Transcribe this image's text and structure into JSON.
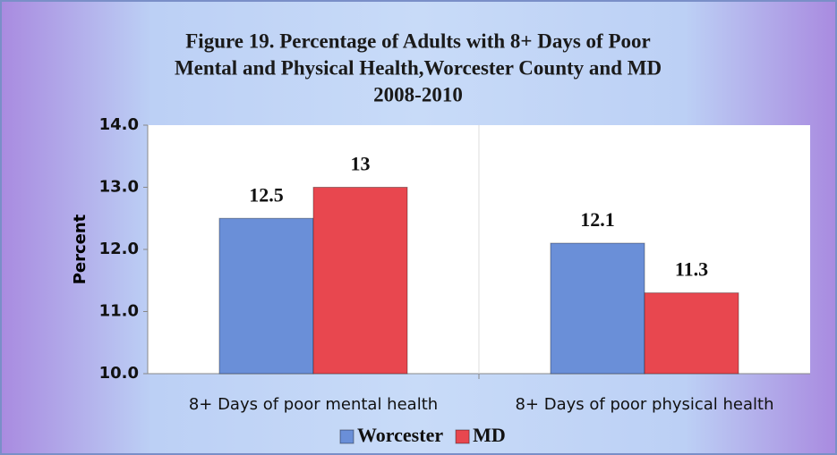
{
  "chart_data": {
    "type": "bar",
    "title": [
      "Figure 19.  Percentage of Adults with 8+ Days of Poor",
      "Mental and Physical Health,Worcester County and MD",
      "2008-2010"
    ],
    "y_label": "Percent",
    "categories": [
      "8+ Days of poor mental health",
      "8+ Days of poor physical health"
    ],
    "series": [
      {
        "name": "Worcester",
        "color": "#6a8fd8",
        "values": [
          12.5,
          12.1
        ]
      },
      {
        "name": "MD",
        "color": "#e8474f",
        "values": [
          13,
          11.3
        ]
      }
    ],
    "ylim": [
      10,
      14
    ],
    "yticks": [
      {
        "value": 10,
        "label": "10.0"
      },
      {
        "value": 11,
        "label": "11.0"
      },
      {
        "value": 12,
        "label": "12.0"
      },
      {
        "value": 13,
        "label": "13.0"
      },
      {
        "value": 14,
        "label": "14.0"
      }
    ],
    "grid": false,
    "legend": "bottom"
  }
}
